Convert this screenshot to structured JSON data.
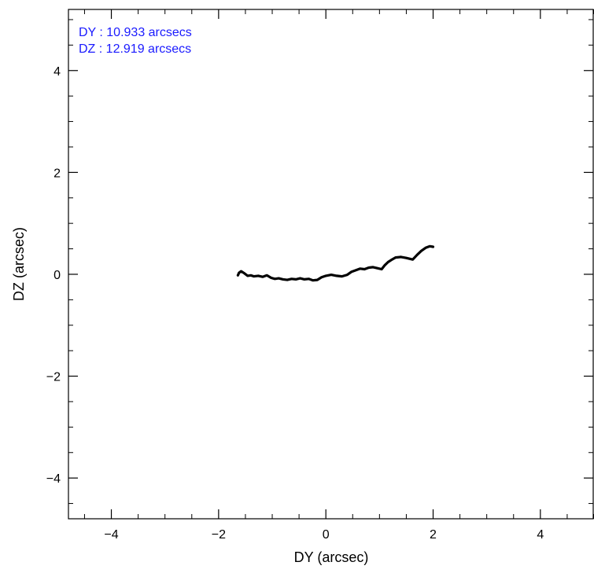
{
  "chart_data": {
    "type": "line",
    "title": "",
    "xlabel": "DY (arcsec)",
    "ylabel": "DZ (arcsec)",
    "xlim": [
      -4.8,
      5.0
    ],
    "ylim": [
      -4.8,
      5.2
    ],
    "x_ticks": [
      -4,
      -2,
      0,
      2,
      4
    ],
    "x_tick_labels": [
      "−4",
      "−2",
      "0",
      "2",
      "4"
    ],
    "y_ticks": [
      -4,
      -2,
      0,
      2,
      4
    ],
    "y_tick_labels": [
      "−4",
      "−2",
      "0",
      "2",
      "4"
    ],
    "grid": false,
    "annotations": [
      "DY : 10.933 arcsecs",
      "DZ : 12.919 arcsecs"
    ],
    "colors": {
      "line": "#000000",
      "annotation": "#1a1aff",
      "axis": "#000000"
    },
    "series": [
      {
        "x": [
          -1.64,
          -1.62,
          -1.58,
          -1.52,
          -1.46,
          -1.4,
          -1.34,
          -1.26,
          -1.18,
          -1.1,
          -1.02,
          -0.95,
          -0.88,
          -0.8,
          -0.72,
          -0.64,
          -0.56,
          -0.48,
          -0.4,
          -0.32,
          -0.24,
          -0.16,
          -0.08,
          0.0,
          0.1,
          0.2,
          0.3,
          0.4,
          0.48,
          0.56,
          0.64,
          0.72,
          0.8,
          0.88,
          0.96,
          1.04,
          1.1,
          1.16,
          1.22,
          1.3,
          1.4,
          1.5,
          1.62,
          1.7,
          1.78,
          1.86,
          1.94,
          2.0
        ],
        "y": [
          -0.02,
          0.03,
          0.06,
          0.02,
          -0.03,
          -0.02,
          -0.04,
          -0.03,
          -0.05,
          -0.02,
          -0.07,
          -0.09,
          -0.08,
          -0.1,
          -0.11,
          -0.09,
          -0.1,
          -0.08,
          -0.1,
          -0.09,
          -0.12,
          -0.11,
          -0.06,
          -0.03,
          -0.01,
          -0.03,
          -0.04,
          -0.01,
          0.05,
          0.08,
          0.11,
          0.1,
          0.13,
          0.14,
          0.12,
          0.1,
          0.18,
          0.24,
          0.28,
          0.33,
          0.34,
          0.32,
          0.29,
          0.38,
          0.46,
          0.52,
          0.55,
          0.54
        ]
      }
    ]
  }
}
